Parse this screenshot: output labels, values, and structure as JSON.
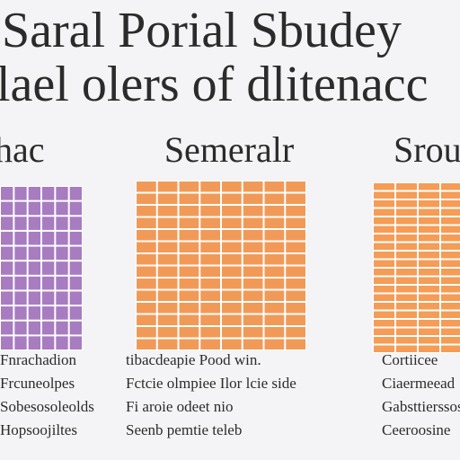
{
  "title": {
    "lines": [
      "Saral Porial Sbudey",
      "lael olers of dlitenacc"
    ]
  },
  "panels": [
    {
      "heading": "hac",
      "caption": [
        "Fnrachadion",
        "Frcuneolpes",
        "Sobesosoleolds",
        "Hopsoojiltes"
      ]
    },
    {
      "heading": "Semeralr",
      "caption": [
        "tibacdeapie Pood win.",
        "Fctcie olmpiee Ilor lcie side",
        "Fi aroie odeet nio",
        "Seenb pemtie teleb"
      ]
    },
    {
      "heading": "Srou",
      "caption": [
        "Cortiicee",
        "Ciaermeead",
        "Gabsttierssos",
        "Ceeroosine"
      ]
    }
  ]
}
